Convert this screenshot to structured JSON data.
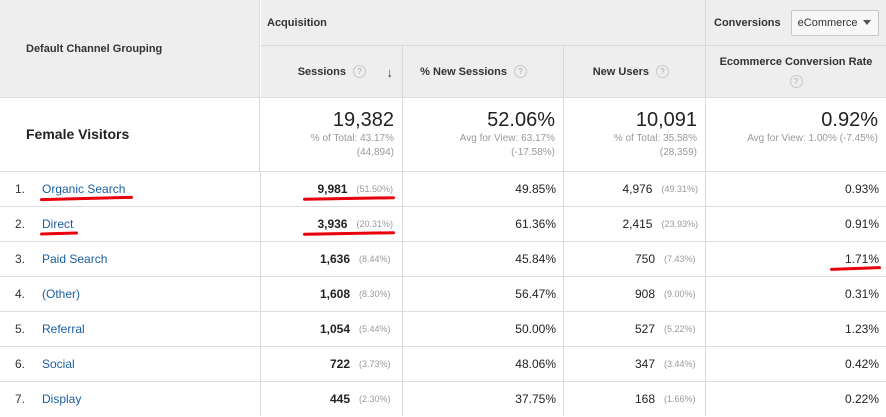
{
  "header": {
    "dimension_label": "Default Channel Grouping",
    "acquisition_label": "Acquisition",
    "conversions_label": "Conversions",
    "conversions_select_value": "eCommerce",
    "help_glyph": "?",
    "sort_glyph": "↓",
    "columns": {
      "sessions": "Sessions",
      "new_sessions": "% New Sessions",
      "new_users": "New Users",
      "conversion_rate": "Ecommerce Conversion Rate"
    }
  },
  "totals": {
    "label": "Female Visitors",
    "sessions": {
      "value": "19,382",
      "line1": "% of Total: 43.17%",
      "line2": "(44,894)"
    },
    "new_sessions": {
      "value": "52.06%",
      "line1": "Avg for View: 63.17%",
      "line2": "(-17.58%)"
    },
    "new_users": {
      "value": "10,091",
      "line1": "% of Total: 35.58%",
      "line2": "(28,359)"
    },
    "conversion_rate": {
      "value": "0.92%",
      "line1": "Avg for View: 1.00% (-7.45%)"
    }
  },
  "rows": [
    {
      "index": "1.",
      "channel": "Organic Search",
      "sessions": "9,981",
      "sessions_pct": "(51.50%)",
      "new_sessions": "49.85%",
      "new_users": "4,976",
      "new_users_pct": "(49.31%)",
      "conversion_rate": "0.93%"
    },
    {
      "index": "2.",
      "channel": "Direct",
      "sessions": "3,936",
      "sessions_pct": "(20.31%)",
      "new_sessions": "61.36%",
      "new_users": "2,415",
      "new_users_pct": "(23.93%)",
      "conversion_rate": "0.91%"
    },
    {
      "index": "3.",
      "channel": "Paid Search",
      "sessions": "1,636",
      "sessions_pct": "(8.44%)",
      "new_sessions": "45.84%",
      "new_users": "750",
      "new_users_pct": "(7.43%)",
      "conversion_rate": "1.71%"
    },
    {
      "index": "4.",
      "channel": "(Other)",
      "sessions": "1,608",
      "sessions_pct": "(8.30%)",
      "new_sessions": "56.47%",
      "new_users": "908",
      "new_users_pct": "(9.00%)",
      "conversion_rate": "0.31%"
    },
    {
      "index": "5.",
      "channel": "Referral",
      "sessions": "1,054",
      "sessions_pct": "(5.44%)",
      "new_sessions": "50.00%",
      "new_users": "527",
      "new_users_pct": "(5.22%)",
      "conversion_rate": "1.23%"
    },
    {
      "index": "6.",
      "channel": "Social",
      "sessions": "722",
      "sessions_pct": "(3.73%)",
      "new_sessions": "48.06%",
      "new_users": "347",
      "new_users_pct": "(3.44%)",
      "conversion_rate": "0.42%"
    },
    {
      "index": "7.",
      "channel": "Display",
      "sessions": "445",
      "sessions_pct": "(2.30%)",
      "new_sessions": "37.75%",
      "new_users": "168",
      "new_users_pct": "(1.66%)",
      "conversion_rate": "0.22%"
    }
  ],
  "colors": {
    "link": "#1a5fa0",
    "annotation": "#e8000b",
    "header_bg": "#eeeeee"
  }
}
